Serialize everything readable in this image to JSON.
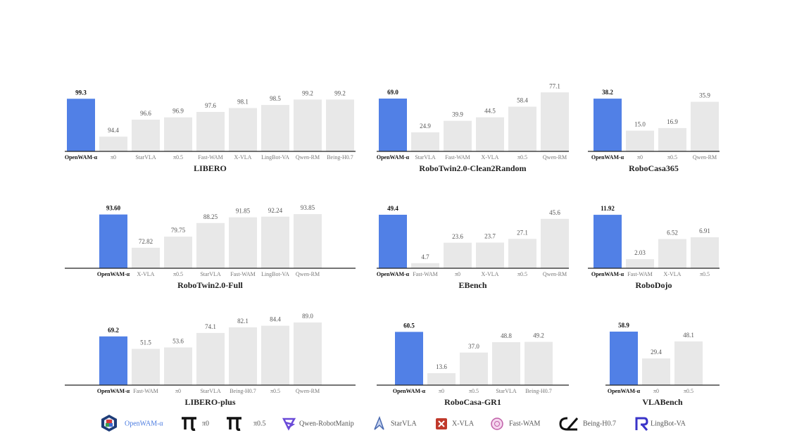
{
  "chart_data": [
    {
      "type": "bar",
      "title": "LIBERO",
      "categories": [
        "OpenWAM-α",
        "π0",
        "StarVLA",
        "π0.5",
        "Fast-WAM",
        "X-VLA",
        "LingBot-VA",
        "Qwen-RM",
        "Being-H0.7"
      ],
      "values": [
        99.3,
        94.4,
        96.6,
        96.9,
        97.6,
        98.1,
        98.5,
        99.2,
        99.2
      ],
      "value_labels": [
        "99.3",
        "94.4",
        "96.6",
        "96.9",
        "97.6",
        "98.1",
        "98.5",
        "99.2",
        "99.2"
      ],
      "colors": [
        "#5180e6",
        "#e8e8e8",
        "#e8e8e8",
        "#e8e8e8",
        "#e8e8e8",
        "#e8e8e8",
        "#e8e8e8",
        "#e8e8e8",
        "#e8e8e8"
      ],
      "ylim": [
        92.5,
        101.6
      ]
    },
    {
      "type": "bar",
      "title": "RoboTwin2.0-Clean2Random",
      "categories": [
        "OpenWAM-α",
        "StarVLA",
        "Fast-WAM",
        "X-VLA",
        "π0.5",
        "Qwen-RM"
      ],
      "values": [
        69.0,
        24.9,
        39.9,
        44.5,
        58.4,
        77.1
      ],
      "value_labels": [
        "69.0",
        "24.9",
        "39.9",
        "44.5",
        "58.4",
        "77.1"
      ],
      "colors": [
        "#5180e6",
        "#e8e8e8",
        "#e8e8e8",
        "#e8e8e8",
        "#e8e8e8",
        "#e8e8e8"
      ],
      "ylim": [
        0,
        92
      ]
    },
    {
      "type": "bar",
      "title": "RoboCasa365",
      "categories": [
        "OpenWAM-α",
        "π0",
        "π0.5",
        "Qwen-RM"
      ],
      "values": [
        38.2,
        15.0,
        16.9,
        35.9
      ],
      "value_labels": [
        "38.2",
        "15.0",
        "16.9",
        "35.9"
      ],
      "colors": [
        "#5180e6",
        "#e8e8e8",
        "#e8e8e8",
        "#e8e8e8"
      ],
      "ylim": [
        0,
        51
      ]
    },
    {
      "type": "bar",
      "title": "RoboTwin2.0-Full",
      "categories": [
        "OpenWAM-α",
        "X-VLA",
        "π0.5",
        "StarVLA",
        "Fast-WAM",
        "LingBot-VA",
        "Qwen-RM"
      ],
      "values": [
        93.6,
        72.82,
        79.75,
        88.25,
        91.85,
        92.24,
        93.85
      ],
      "value_labels": [
        "93.60",
        "72.82",
        "79.75",
        "88.25",
        "91.85",
        "92.24",
        "93.85"
      ],
      "colors": [
        "#5180e6",
        "#e8e8e8",
        "#e8e8e8",
        "#e8e8e8",
        "#e8e8e8",
        "#e8e8e8",
        "#e8e8e8"
      ],
      "ylim": [
        60,
        104
      ]
    },
    {
      "type": "bar",
      "title": "EBench",
      "categories": [
        "OpenWAM-α",
        "Fast-WAM",
        "π0",
        "X-VLA",
        "π0.5",
        "Qwen-RM"
      ],
      "values": [
        49.4,
        4.7,
        23.6,
        23.7,
        27.1,
        45.6
      ],
      "value_labels": [
        "49.4",
        "4.7",
        "23.6",
        "23.7",
        "27.1",
        "45.6"
      ],
      "colors": [
        "#5180e6",
        "#e8e8e8",
        "#e8e8e8",
        "#e8e8e8",
        "#e8e8e8",
        "#e8e8e8"
      ],
      "ylim": [
        0,
        65
      ]
    },
    {
      "type": "bar",
      "title": "RoboDojo",
      "categories": [
        "OpenWAM-α",
        "Fast-WAM",
        "X-VLA",
        "π0.5"
      ],
      "values": [
        11.92,
        2.03,
        6.52,
        6.91
      ],
      "value_labels": [
        "11.92",
        "2.03",
        "6.52",
        "6.91"
      ],
      "colors": [
        "#5180e6",
        "#e8e8e8",
        "#e8e8e8",
        "#e8e8e8"
      ],
      "ylim": [
        0,
        15.7
      ]
    },
    {
      "type": "bar",
      "title": "LIBERO-plus",
      "categories": [
        "OpenWAM-α",
        "Fast-WAM",
        "π0",
        "StarVLA",
        "Being-H0.7",
        "π0.5",
        "Qwen-RM"
      ],
      "values": [
        69.2,
        51.5,
        53.6,
        74.1,
        82.1,
        84.4,
        89.0
      ],
      "value_labels": [
        "69.2",
        "51.5",
        "53.6",
        "74.1",
        "82.1",
        "84.4",
        "89.0"
      ],
      "colors": [
        "#5180e6",
        "#e8e8e8",
        "#e8e8e8",
        "#e8e8e8",
        "#e8e8e8",
        "#e8e8e8",
        "#e8e8e8"
      ],
      "ylim": [
        0,
        100
      ]
    },
    {
      "type": "bar",
      "title": "RoboCasa-GR1",
      "categories": [
        "OpenWAM-α",
        "π0",
        "π0.5",
        "StarVLA",
        "Being-H0.7"
      ],
      "values": [
        60.5,
        13.6,
        37.0,
        48.8,
        49.2
      ],
      "value_labels": [
        "60.5",
        "13.6",
        "37.0",
        "48.8",
        "49.2"
      ],
      "colors": [
        "#5180e6",
        "#e8e8e8",
        "#e8e8e8",
        "#e8e8e8",
        "#e8e8e8"
      ],
      "ylim": [
        0,
        80
      ]
    },
    {
      "type": "bar",
      "title": "VLABench",
      "categories": [
        "OpenWAM-α",
        "π0",
        "π0.5"
      ],
      "values": [
        58.9,
        29.4,
        48.1
      ],
      "value_labels": [
        "58.9",
        "29.4",
        "48.1"
      ],
      "colors": [
        "#5180e6",
        "#e8e8e8",
        "#e8e8e8"
      ],
      "ylim": [
        0,
        77.5
      ]
    }
  ],
  "legend": {
    "items": [
      "OpenWAM-α",
      "π0",
      "π0.5",
      "Qwen-RobotManip",
      "StarVLA",
      "X-VLA",
      "Fast-WAM",
      "Being-H0.7",
      "LingBot-VA"
    ]
  }
}
